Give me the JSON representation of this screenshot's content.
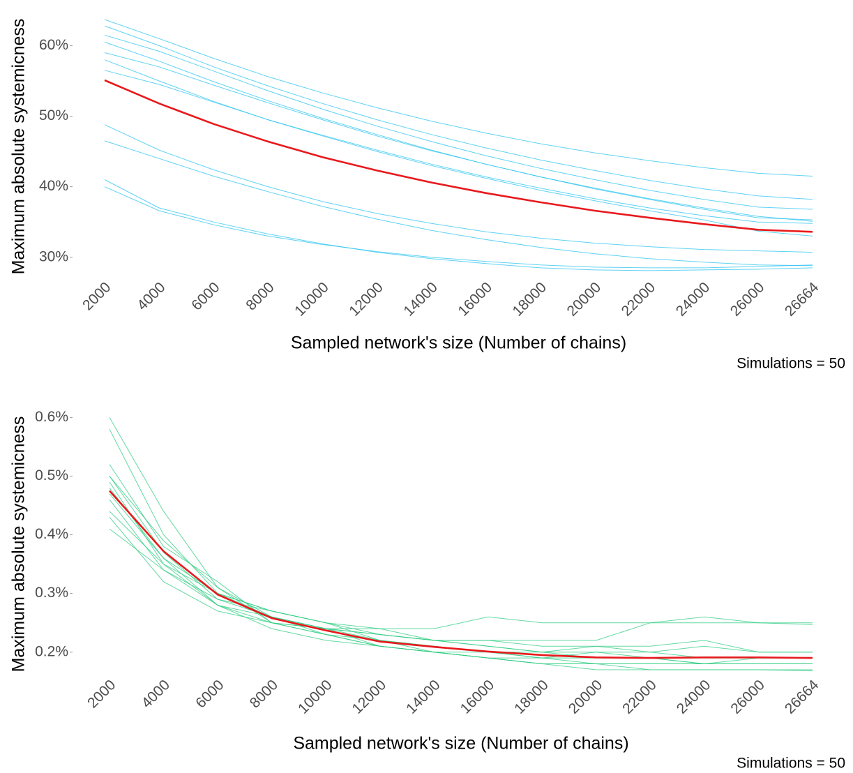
{
  "chart_data": [
    {
      "type": "line",
      "y_label": "Maximum absolute systemicness",
      "x_label": "Sampled network's size (Number of chains)",
      "caption": "Simulations = 50",
      "categories": [
        2000,
        4000,
        6000,
        8000,
        10000,
        12000,
        14000,
        16000,
        18000,
        20000,
        22000,
        24000,
        26000,
        26664
      ],
      "ylim": [
        27.4,
        64
      ],
      "yticks": [
        {
          "value": 30,
          "label": "30%"
        },
        {
          "value": 40,
          "label": "40%"
        },
        {
          "value": 50,
          "label": "50%"
        },
        {
          "value": 60,
          "label": "60%"
        }
      ],
      "grid": false,
      "series": [
        {
          "color": "#29c3f0",
          "values": [
            63.7,
            61.0,
            58.2,
            55.6,
            53.3,
            51.2,
            49.3,
            47.6,
            46.1,
            44.8,
            43.7,
            42.7,
            41.9,
            41.5
          ]
        },
        {
          "color": "#29c3f0",
          "values": [
            62.8,
            60.0,
            57.0,
            54.3,
            51.8,
            49.5,
            47.4,
            45.5,
            43.8,
            42.3,
            40.9,
            39.7,
            38.7,
            38.2
          ]
        },
        {
          "color": "#29c3f0",
          "values": [
            61.5,
            59.2,
            56.4,
            53.6,
            51.0,
            48.6,
            46.4,
            44.4,
            42.6,
            41.0,
            39.5,
            38.2,
            37.1,
            36.8
          ]
        },
        {
          "color": "#29c3f0",
          "values": [
            60.5,
            57.8,
            54.9,
            52.2,
            49.7,
            47.4,
            45.2,
            43.2,
            41.4,
            39.8,
            38.3,
            37.0,
            35.8,
            35.1
          ]
        },
        {
          "color": "#29c3f0",
          "values": [
            59.0,
            57.0,
            54.4,
            51.9,
            49.5,
            47.2,
            45.1,
            43.2,
            41.4,
            39.7,
            38.2,
            36.8,
            35.6,
            35.3
          ]
        },
        {
          "color": "#29c3f0",
          "values": [
            58.0,
            55.0,
            52.1,
            49.5,
            47.2,
            45.0,
            43.0,
            41.2,
            39.5,
            38.0,
            36.6,
            35.3,
            33.7,
            33.0
          ]
        },
        {
          "color": "#29c3f0",
          "values": [
            56.5,
            54.5,
            52.0,
            49.5,
            47.3,
            45.2,
            43.2,
            41.4,
            39.8,
            38.3,
            37.0,
            35.9,
            35.0,
            34.8
          ]
        },
        {
          "color": "#29c3f0",
          "values": [
            48.8,
            45.2,
            42.4,
            40.0,
            37.9,
            36.2,
            34.8,
            33.6,
            32.7,
            32.0,
            31.5,
            31.1,
            30.9,
            30.7
          ]
        },
        {
          "color": "#29c3f0",
          "values": [
            46.5,
            44.0,
            41.5,
            39.3,
            37.2,
            35.4,
            33.8,
            32.5,
            31.4,
            30.5,
            29.8,
            29.3,
            28.9,
            28.8
          ]
        },
        {
          "color": "#29c3f0",
          "values": [
            41.0,
            37.0,
            35.0,
            33.3,
            31.9,
            30.7,
            29.8,
            29.1,
            28.5,
            28.2,
            28.1,
            28.2,
            28.3,
            28.5
          ]
        },
        {
          "color": "#29c3f0",
          "values": [
            40.0,
            36.6,
            34.6,
            33.0,
            31.8,
            30.8,
            30.0,
            29.4,
            28.9,
            28.6,
            28.5,
            28.5,
            28.7,
            28.9
          ]
        },
        {
          "color": "#e8191c",
          "values": [
            55.1,
            51.8,
            48.9,
            46.4,
            44.2,
            42.3,
            40.6,
            39.1,
            37.8,
            36.6,
            35.6,
            34.7,
            33.9,
            33.6
          ]
        }
      ]
    },
    {
      "type": "line",
      "y_label": "Maximum absolute systemicness",
      "x_label": "Sampled network's size (Number of chains)",
      "caption": "Simulations = 50",
      "categories": [
        2000,
        4000,
        6000,
        8000,
        10000,
        12000,
        14000,
        16000,
        18000,
        20000,
        22000,
        24000,
        26000,
        26664
      ],
      "ylim": [
        0.164,
        0.604
      ],
      "yticks": [
        {
          "value": 0.2,
          "label": "0.2%"
        },
        {
          "value": 0.3,
          "label": "0.3%"
        },
        {
          "value": 0.4,
          "label": "0.4%"
        },
        {
          "value": 0.5,
          "label": "0.5%"
        },
        {
          "value": 0.6,
          "label": "0.6%"
        }
      ],
      "grid": false,
      "series": [
        {
          "color": "#2ecc82",
          "values": [
            0.6,
            0.44,
            0.31,
            0.26,
            0.24,
            0.23,
            0.22,
            0.21,
            0.2,
            0.2,
            0.2,
            0.19,
            0.19,
            0.19
          ]
        },
        {
          "color": "#2ecc82",
          "values": [
            0.58,
            0.4,
            0.3,
            0.27,
            0.25,
            0.23,
            0.22,
            0.21,
            0.2,
            0.19,
            0.19,
            0.19,
            0.19,
            0.19
          ]
        },
        {
          "color": "#2ecc82",
          "values": [
            0.52,
            0.38,
            0.32,
            0.25,
            0.24,
            0.24,
            0.24,
            0.26,
            0.25,
            0.25,
            0.25,
            0.25,
            0.25,
            0.247
          ]
        },
        {
          "color": "#2ecc82",
          "values": [
            0.5,
            0.37,
            0.29,
            0.27,
            0.25,
            0.22,
            0.21,
            0.2,
            0.2,
            0.21,
            0.21,
            0.22,
            0.2,
            0.2
          ]
        },
        {
          "color": "#2ecc82",
          "values": [
            0.49,
            0.35,
            0.28,
            0.25,
            0.23,
            0.21,
            0.2,
            0.19,
            0.18,
            0.18,
            0.18,
            0.18,
            0.18,
            0.18
          ]
        },
        {
          "color": "#2ecc82",
          "values": [
            0.47,
            0.36,
            0.3,
            0.26,
            0.24,
            0.22,
            0.21,
            0.2,
            0.19,
            0.18,
            0.17,
            0.17,
            0.17,
            0.17
          ]
        },
        {
          "color": "#2ecc82",
          "values": [
            0.46,
            0.34,
            0.29,
            0.26,
            0.23,
            0.22,
            0.2,
            0.19,
            0.18,
            0.17,
            0.17,
            0.17,
            0.17,
            0.168
          ]
        },
        {
          "color": "#2ecc82",
          "values": [
            0.44,
            0.35,
            0.3,
            0.27,
            0.25,
            0.24,
            0.22,
            0.22,
            0.21,
            0.21,
            0.2,
            0.21,
            0.2,
            0.2
          ]
        },
        {
          "color": "#2ecc82",
          "values": [
            0.43,
            0.32,
            0.27,
            0.25,
            0.23,
            0.21,
            0.2,
            0.19,
            0.19,
            0.19,
            0.19,
            0.18,
            0.19,
            0.19
          ]
        },
        {
          "color": "#2ecc82",
          "values": [
            0.41,
            0.34,
            0.28,
            0.24,
            0.22,
            0.21,
            0.2,
            0.19,
            0.18,
            0.18,
            0.18,
            0.18,
            0.18,
            0.18
          ]
        },
        {
          "color": "#2ecc82",
          "values": [
            0.5,
            0.39,
            0.31,
            0.25,
            0.24,
            0.23,
            0.22,
            0.22,
            0.22,
            0.22,
            0.25,
            0.26,
            0.25,
            0.25
          ]
        },
        {
          "color": "#2ecc82",
          "values": [
            0.48,
            0.36,
            0.28,
            0.26,
            0.24,
            0.21,
            0.2,
            0.2,
            0.19,
            0.2,
            0.19,
            0.18,
            0.18,
            0.18
          ]
        },
        {
          "color": "#e8191c",
          "values": [
            0.475,
            0.372,
            0.298,
            0.258,
            0.237,
            0.218,
            0.209,
            0.201,
            0.195,
            0.191,
            0.19,
            0.191,
            0.191,
            0.19
          ]
        }
      ]
    }
  ]
}
